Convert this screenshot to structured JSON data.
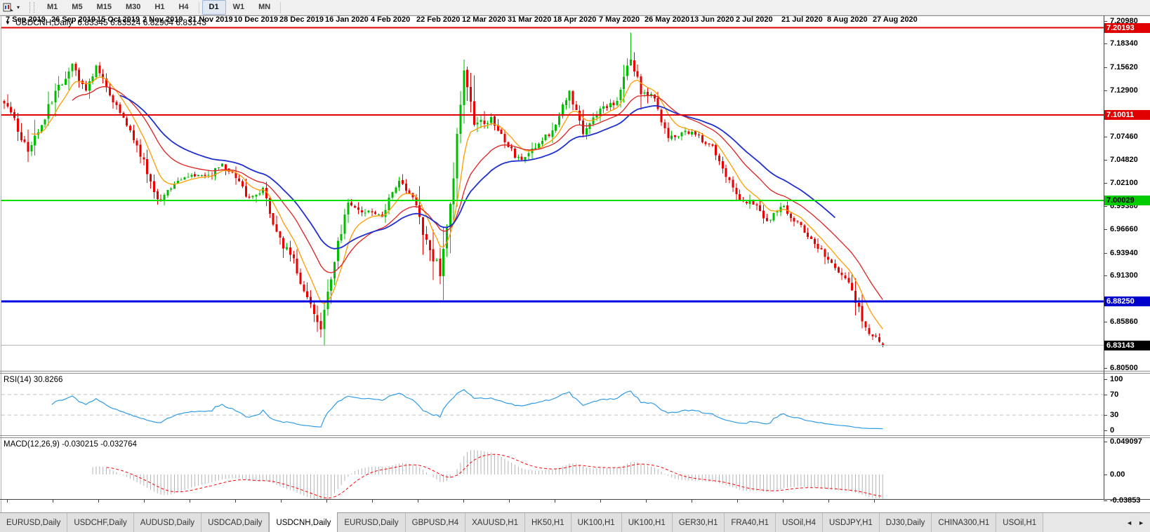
{
  "toolbar": {
    "timeframes": [
      "M1",
      "M5",
      "M15",
      "M30",
      "H1",
      "H4",
      "D1",
      "W1",
      "MN"
    ],
    "active_timeframe": "D1",
    "dropdown_caret": "▾"
  },
  "chart": {
    "title_symbol": "USDCNH,Daily",
    "ohlc_text": "6.83345 6.83524 6.82904 6.83143",
    "collapse_glyph": "▼"
  },
  "rsi": {
    "label": "RSI(14) 30.8266",
    "period": 14,
    "line_color": "#2e9be6",
    "level_values": [
      70,
      30
    ],
    "axis_labels": [
      "100",
      "70",
      "30",
      "0"
    ]
  },
  "macd": {
    "label": "MACD(12,26,9) -0.030215 -0.032764",
    "fast": 12,
    "slow": 26,
    "signal": 9,
    "hist_color": "#b4b4b4",
    "signal_color": "#ff0000",
    "axis_labels": [
      "0.049097",
      "0.00",
      "-0.03853"
    ],
    "axis_values": [
      0.049097,
      0.0,
      -0.03853
    ]
  },
  "price_axis": {
    "ticks": [
      "7.20980",
      "7.18340",
      "7.15620",
      "7.12900",
      "7.07460",
      "7.04820",
      "7.02100",
      "6.99380",
      "6.96660",
      "6.93940",
      "6.91300",
      "6.85860",
      "6.80500"
    ],
    "badges": [
      {
        "text": "7.20193",
        "price": 7.20193,
        "bg": "#e00000",
        "fg": "#ffffff"
      },
      {
        "text": "7.10011",
        "price": 7.10011,
        "bg": "#e00000",
        "fg": "#ffffff"
      },
      {
        "text": "7.00029",
        "price": 7.00029,
        "bg": "#00cc00",
        "fg": "#000000"
      },
      {
        "text": "6.88250",
        "price": 6.8825,
        "bg": "#0000cc",
        "fg": "#ffffff"
      },
      {
        "text": "6.83143",
        "price": 6.83143,
        "bg": "#000000",
        "fg": "#ffffff"
      }
    ]
  },
  "date_axis": {
    "labels": [
      "7 Sep 2019",
      "26 Sep 2019",
      "15 Oct 2019",
      "2 Nov 2019",
      "21 Nov 2019",
      "10 Dec 2019",
      "28 Dec 2019",
      "16 Jan 2020",
      "4 Feb 2020",
      "22 Feb 2020",
      "12 Mar 2020",
      "31 Mar 2020",
      "18 Apr 2020",
      "7 May 2020",
      "26 May 2020",
      "13 Jun 2020",
      "2 Jul 2020",
      "21 Jul 2020",
      "8 Aug 2020",
      "27 Aug 2020"
    ]
  },
  "tabs": {
    "items": [
      "EURUSD,Daily",
      "USDCHF,Daily",
      "AUDUSD,Daily",
      "USDCAD,Daily",
      "USDCNH,Daily",
      "EURUSD,Daily",
      "GBPUSD,H4",
      "XAUUSD,H1",
      "HK50,H1",
      "UK100,H1",
      "UK100,H1",
      "GER30,H1",
      "FRA40,H1",
      "USOil,H4",
      "USDJPY,H1",
      "DJ30,Daily",
      "CHINA300,H1",
      "USOil,H1"
    ],
    "active_index": 4,
    "scroll_left_glyph": "◄",
    "scroll_right_glyph": "►"
  },
  "chart_data": {
    "type": "candlestick",
    "symbol": "USDCNH",
    "timeframe": "Daily",
    "ylim": [
      6.805,
      7.2098
    ],
    "bars": 259,
    "x_categories": [
      "7 Sep 2019",
      "26 Sep 2019",
      "15 Oct 2019",
      "2 Nov 2019",
      "21 Nov 2019",
      "10 Dec 2019",
      "28 Dec 2019",
      "16 Jan 2020",
      "4 Feb 2020",
      "22 Feb 2020",
      "12 Mar 2020",
      "31 Mar 2020",
      "18 Apr 2020",
      "7 May 2020",
      "26 May 2020",
      "13 Jun 2020",
      "2 Jul 2020",
      "21 Jul 2020",
      "8 Aug 2020",
      "27 Aug 2020"
    ],
    "colors": {
      "up": "#00bd00",
      "down": "#ea0000"
    },
    "close_anchors": [
      [
        0,
        7.118
      ],
      [
        4,
        7.082
      ],
      [
        7,
        7.058
      ],
      [
        12,
        7.098
      ],
      [
        16,
        7.135
      ],
      [
        20,
        7.158
      ],
      [
        24,
        7.128
      ],
      [
        27,
        7.156
      ],
      [
        31,
        7.125
      ],
      [
        36,
        7.09
      ],
      [
        41,
        7.045
      ],
      [
        45,
        6.999
      ],
      [
        50,
        7.022
      ],
      [
        55,
        7.032
      ],
      [
        60,
        7.028
      ],
      [
        64,
        7.042
      ],
      [
        68,
        7.028
      ],
      [
        72,
        7.002
      ],
      [
        76,
        7.012
      ],
      [
        80,
        6.962
      ],
      [
        85,
        6.928
      ],
      [
        89,
        6.886
      ],
      [
        93,
        6.848
      ],
      [
        97,
        6.932
      ],
      [
        101,
        6.998
      ],
      [
        106,
        6.986
      ],
      [
        111,
        6.984
      ],
      [
        116,
        7.026
      ],
      [
        121,
        6.996
      ],
      [
        125,
        6.938
      ],
      [
        128,
        6.918
      ],
      [
        132,
        7.03
      ],
      [
        135,
        7.158
      ],
      [
        138,
        7.092
      ],
      [
        143,
        7.098
      ],
      [
        148,
        7.062
      ],
      [
        152,
        7.045
      ],
      [
        157,
        7.068
      ],
      [
        161,
        7.082
      ],
      [
        166,
        7.128
      ],
      [
        170,
        7.078
      ],
      [
        175,
        7.105
      ],
      [
        180,
        7.118
      ],
      [
        184,
        7.168
      ],
      [
        187,
        7.128
      ],
      [
        191,
        7.118
      ],
      [
        195,
        7.072
      ],
      [
        200,
        7.082
      ],
      [
        204,
        7.074
      ],
      [
        208,
        7.064
      ],
      [
        212,
        7.03
      ],
      [
        216,
        7.002
      ],
      [
        220,
        6.998
      ],
      [
        224,
        6.976
      ],
      [
        228,
        6.996
      ],
      [
        233,
        6.974
      ],
      [
        238,
        6.952
      ],
      [
        243,
        6.926
      ],
      [
        248,
        6.904
      ],
      [
        251,
        6.872
      ],
      [
        254,
        6.846
      ],
      [
        258,
        6.8314
      ]
    ],
    "volatility_zones": [
      [
        0,
        20,
        1.6
      ],
      [
        80,
        100,
        1.5
      ],
      [
        122,
        142,
        2.0
      ],
      [
        178,
        190,
        1.4
      ],
      [
        246,
        258,
        1.3
      ]
    ],
    "key_points": [
      {
        "bar": 93,
        "low": 6.8405
      },
      {
        "bar": 135,
        "high": 7.165
      },
      {
        "bar": 184,
        "high": 7.1965
      },
      {
        "bar": 258,
        "open": 6.83345,
        "high": 6.83524,
        "low": 6.82904,
        "close": 6.83143
      }
    ],
    "moving_averages": [
      {
        "period": 8,
        "color": "#ff9c00",
        "width": 1.3
      },
      {
        "period": 20,
        "color": "#e02020",
        "width": 1.3
      },
      {
        "period": 34,
        "color": "#1f2fd0",
        "width": 1.8,
        "end_bar": 244
      }
    ],
    "horizontal_lines": [
      {
        "price": 7.20193,
        "color": "#e00000",
        "width": 2
      },
      {
        "price": 7.10011,
        "color": "#e00000",
        "width": 2
      },
      {
        "price": 7.00029,
        "color": "#00dd00",
        "width": 2
      },
      {
        "price": 6.8825,
        "color": "#0000e0",
        "width": 3
      },
      {
        "price": 6.83143,
        "color": "#b4b4b4",
        "width": 1,
        "role": "current-price"
      }
    ]
  }
}
